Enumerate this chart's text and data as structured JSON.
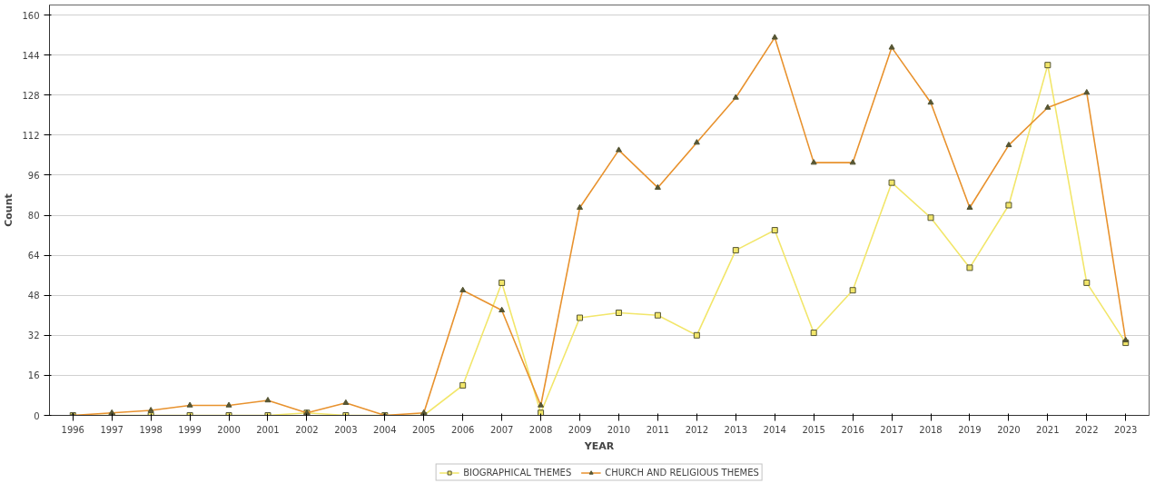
{
  "chart_data": {
    "type": "line",
    "xlabel": "YEAR",
    "ylabel": "Count",
    "categories": [
      "1996",
      "1997",
      "1998",
      "1999",
      "2000",
      "2001",
      "2002",
      "2003",
      "2004",
      "2005",
      "2006",
      "2007",
      "2008",
      "2009",
      "2010",
      "2011",
      "2012",
      "2013",
      "2014",
      "2015",
      "2016",
      "2017",
      "2018",
      "2019",
      "2020",
      "2021",
      "2022",
      "2023"
    ],
    "series": [
      {
        "name": "BIOGRAPHICAL THEMES",
        "color": "#f2e66a",
        "marker": "square",
        "values": [
          0,
          0,
          0,
          0,
          0,
          0,
          1,
          0,
          0,
          0,
          12,
          53,
          1,
          39,
          41,
          40,
          32,
          66,
          74,
          33,
          50,
          93,
          79,
          59,
          84,
          140,
          53,
          29
        ]
      },
      {
        "name": "CHURCH AND RELIGIOUS THEMES",
        "color": "#e8922e",
        "marker": "triangle",
        "values": [
          0,
          1,
          2,
          4,
          4,
          6,
          1,
          5,
          0,
          1,
          50,
          42,
          4,
          83,
          106,
          91,
          109,
          127,
          151,
          101,
          101,
          147,
          125,
          83,
          108,
          123,
          129,
          30
        ]
      }
    ],
    "ylim": [
      0,
      164
    ],
    "yticks": [
      0,
      16,
      32,
      48,
      64,
      80,
      96,
      112,
      128,
      144,
      160
    ],
    "grid": "y",
    "legend": "bottom"
  }
}
